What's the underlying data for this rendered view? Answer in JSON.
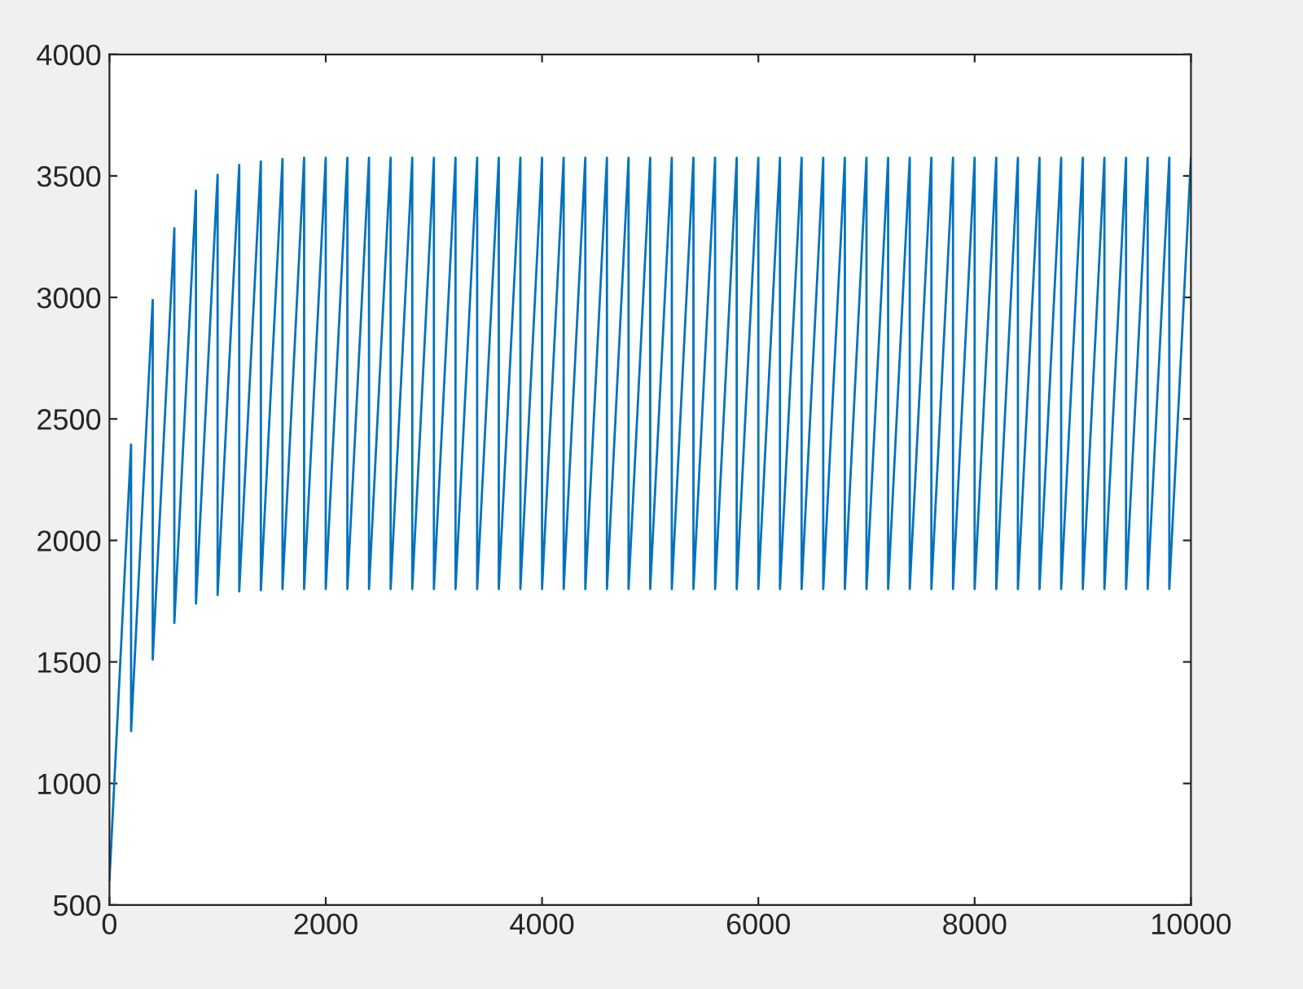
{
  "chart_data": {
    "type": "line",
    "xlim": [
      0,
      10000
    ],
    "xticks": [
      0,
      2000,
      4000,
      6000,
      8000,
      10000
    ],
    "ylim": [
      500,
      4000
    ],
    "yticks": [
      500,
      1000,
      1500,
      2000,
      2500,
      3000,
      3500,
      4000
    ],
    "grid": false,
    "marker": "none",
    "line_style": "solid",
    "series": [
      {
        "color": "#0072bd",
        "x": [
          0,
          200,
          200,
          400,
          400,
          600,
          600,
          800,
          800,
          1000,
          1000,
          1200,
          1200,
          1400,
          1400,
          1600,
          1600,
          1800,
          1800,
          2000,
          2000,
          2200,
          2200,
          2400,
          2400,
          2600,
          2600,
          2800,
          2800,
          3000,
          3000,
          3200,
          3200,
          3400,
          3400,
          3600,
          3600,
          3800,
          3800,
          4000,
          4000,
          4200,
          4200,
          4400,
          4400,
          4600,
          4600,
          4800,
          4800,
          5000,
          5000,
          5200,
          5200,
          5400,
          5400,
          5600,
          5600,
          5800,
          5800,
          6000,
          6000,
          6200,
          6200,
          6400,
          6400,
          6600,
          6600,
          6800,
          6800,
          7000,
          7000,
          7200,
          7200,
          7400,
          7400,
          7600,
          7600,
          7800,
          7800,
          8000,
          8000,
          8200,
          8200,
          8400,
          8400,
          8600,
          8600,
          8800,
          8800,
          9000,
          9000,
          9200,
          9200,
          9400,
          9400,
          9600,
          9600,
          9800,
          9800,
          10000
        ],
        "values": [
          600,
          2395,
          1215,
          2990,
          1510,
          3285,
          1660,
          3440,
          1740,
          3505,
          1775,
          3545,
          1790,
          3560,
          1795,
          3570,
          1800,
          3575,
          1800,
          3575,
          1800,
          3575,
          1800,
          3575,
          1800,
          3575,
          1800,
          3575,
          1800,
          3575,
          1800,
          3575,
          1800,
          3575,
          1800,
          3575,
          1800,
          3575,
          1800,
          3575,
          1800,
          3575,
          1800,
          3575,
          1800,
          3575,
          1800,
          3575,
          1800,
          3575,
          1800,
          3575,
          1800,
          3575,
          1800,
          3575,
          1800,
          3575,
          1800,
          3575,
          1800,
          3575,
          1800,
          3575,
          1800,
          3575,
          1800,
          3575,
          1800,
          3575,
          1800,
          3575,
          1800,
          3575,
          1800,
          3575,
          1800,
          3575,
          1800,
          3575,
          1800,
          3575,
          1800,
          3575,
          1800,
          3575,
          1800,
          3575,
          1800,
          3575,
          1800,
          3575,
          1800,
          3575,
          1800,
          3575,
          1800,
          3575,
          1800,
          3575
        ]
      }
    ]
  }
}
